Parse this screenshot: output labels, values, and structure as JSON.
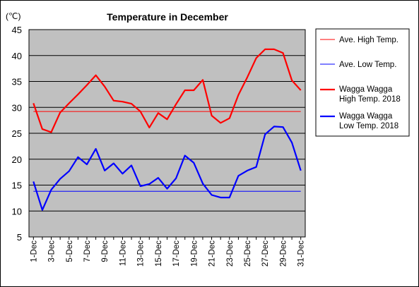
{
  "chart_data": {
    "type": "line",
    "title": "Temperature in December",
    "unit_label": "(℃)",
    "xlabel": "",
    "ylabel": "",
    "ylim": [
      5,
      45
    ],
    "yticks": [
      5,
      10,
      15,
      20,
      25,
      30,
      35,
      40,
      45
    ],
    "grid": true,
    "legend_position": "right",
    "plot_background": "#c0c0c0",
    "categories": [
      "1-Dec",
      "2-Dec",
      "3-Dec",
      "4-Dec",
      "5-Dec",
      "6-Dec",
      "7-Dec",
      "8-Dec",
      "9-Dec",
      "10-Dec",
      "11-Dec",
      "12-Dec",
      "13-Dec",
      "14-Dec",
      "15-Dec",
      "16-Dec",
      "17-Dec",
      "18-Dec",
      "19-Dec",
      "20-Dec",
      "21-Dec",
      "22-Dec",
      "23-Dec",
      "24-Dec",
      "25-Dec",
      "26-Dec",
      "27-Dec",
      "28-Dec",
      "29-Dec",
      "30-Dec",
      "31-Dec"
    ],
    "tick_labels": [
      "1-Dec",
      "3-Dec",
      "5-Dec",
      "7-Dec",
      "9-Dec",
      "11-Dec",
      "13-Dec",
      "15-Dec",
      "17-Dec",
      "19-Dec",
      "21-Dec",
      "23-Dec",
      "25-Dec",
      "27-Dec",
      "29-Dec",
      "31-Dec"
    ],
    "series": [
      {
        "name": "Ave. High Temp.",
        "color": "#ff0000",
        "width": 1,
        "values": [
          29.2,
          29.2,
          29.2,
          29.2,
          29.2,
          29.2,
          29.2,
          29.2,
          29.2,
          29.2,
          29.2,
          29.2,
          29.2,
          29.2,
          29.2,
          29.2,
          29.2,
          29.2,
          29.2,
          29.2,
          29.2,
          29.2,
          29.2,
          29.2,
          29.2,
          29.2,
          29.2,
          29.2,
          29.2,
          29.2,
          29.2
        ]
      },
      {
        "name": "Ave. Low Temp.",
        "color": "#0000ff",
        "width": 1,
        "values": [
          13.8,
          13.8,
          13.8,
          13.8,
          13.8,
          13.8,
          13.8,
          13.8,
          13.8,
          13.8,
          13.8,
          13.8,
          13.8,
          13.8,
          13.8,
          13.8,
          13.8,
          13.8,
          13.8,
          13.8,
          13.8,
          13.8,
          13.8,
          13.8,
          13.8,
          13.8,
          13.8,
          13.8,
          13.8,
          13.8,
          13.8
        ]
      },
      {
        "name": "Wagga Wagga High Temp. 2018",
        "legend_lines": [
          "Wagga Wagga",
          "High Temp. 2018"
        ],
        "color": "#ff0000",
        "width": 2.2,
        "values": [
          30.8,
          25.8,
          25.2,
          29.0,
          30.8,
          32.5,
          34.3,
          36.2,
          34.0,
          31.3,
          31.1,
          30.7,
          29.2,
          26.1,
          28.9,
          27.7,
          30.6,
          33.3,
          33.3,
          35.3,
          28.4,
          27.0,
          27.9,
          32.4,
          35.8,
          39.5,
          41.2,
          41.2,
          40.5,
          35.2,
          33.3
        ]
      },
      {
        "name": "Wagga Wagga Low Temp. 2018",
        "legend_lines": [
          "Wagga Wagga",
          "Low Temp. 2018"
        ],
        "color": "#0000ff",
        "width": 2.2,
        "values": [
          15.7,
          10.2,
          14.1,
          16.2,
          17.7,
          20.4,
          19.0,
          22.0,
          17.8,
          19.2,
          17.2,
          18.8,
          14.8,
          15.2,
          16.4,
          14.3,
          16.3,
          20.7,
          19.3,
          15.3,
          13.1,
          12.6,
          12.6,
          16.8,
          17.8,
          18.5,
          24.8,
          26.3,
          26.2,
          23.2,
          17.8
        ]
      }
    ]
  }
}
